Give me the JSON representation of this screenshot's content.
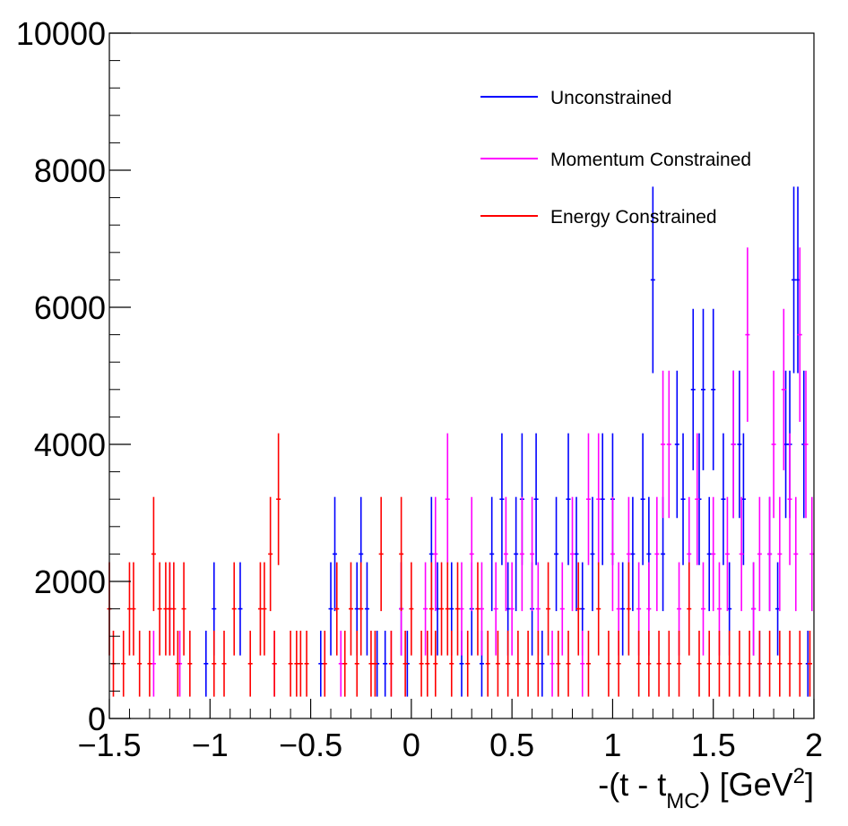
{
  "chart_data": {
    "type": "scatter",
    "title": "",
    "xlabel": "-(t - t_MC) [GeV^2]",
    "xlabel_parts": {
      "pre": "-(t - t",
      "sub": "MC",
      "mid": ") [GeV",
      "sup": "2",
      "post": "]"
    },
    "ylabel": "",
    "xlim": [
      -1.5,
      2
    ],
    "ylim": [
      0,
      10000
    ],
    "x_ticks": [
      -1.5,
      -1,
      -0.5,
      0,
      0.5,
      1,
      1.5,
      2
    ],
    "x_tick_labels": [
      "−1.5",
      "−1",
      "−0.5",
      "0",
      "0.5",
      "1",
      "1.5",
      "2"
    ],
    "y_ticks": [
      0,
      2000,
      4000,
      6000,
      8000,
      10000
    ],
    "y_tick_labels": [
      "0",
      "2000",
      "4000",
      "6000",
      "8000",
      "10000"
    ],
    "grid": false,
    "legend_position": "top-right",
    "error_bars": true,
    "series": [
      {
        "name": "Unconstrained",
        "color": "#0000ff",
        "points": [
          [
            -1.02,
            800
          ],
          [
            -0.98,
            1600
          ],
          [
            -0.85,
            1600
          ],
          [
            -0.45,
            800
          ],
          [
            -0.4,
            1600
          ],
          [
            -0.38,
            2400
          ],
          [
            -0.27,
            1600
          ],
          [
            -0.25,
            2400
          ],
          [
            -0.22,
            1600
          ],
          [
            -0.17,
            800
          ],
          [
            -0.13,
            800
          ],
          [
            -0.05,
            1600
          ],
          [
            -0.02,
            800
          ],
          [
            0.1,
            2400
          ],
          [
            0.13,
            1600
          ],
          [
            0.2,
            1600
          ],
          [
            0.25,
            800
          ],
          [
            0.3,
            1600
          ],
          [
            0.35,
            800
          ],
          [
            0.4,
            2400
          ],
          [
            0.45,
            3200
          ],
          [
            0.48,
            1600
          ],
          [
            0.52,
            2400
          ],
          [
            0.55,
            3200
          ],
          [
            0.6,
            1600
          ],
          [
            0.62,
            3200
          ],
          [
            0.65,
            800
          ],
          [
            0.72,
            2400
          ],
          [
            0.78,
            3200
          ],
          [
            0.82,
            2400
          ],
          [
            0.85,
            1600
          ],
          [
            0.9,
            2400
          ],
          [
            0.95,
            3200
          ],
          [
            1.0,
            3200
          ],
          [
            1.05,
            1600
          ],
          [
            1.1,
            2400
          ],
          [
            1.15,
            3200
          ],
          [
            1.18,
            2400
          ],
          [
            1.2,
            6400
          ],
          [
            1.25,
            2400
          ],
          [
            1.32,
            4000
          ],
          [
            1.35,
            3200
          ],
          [
            1.4,
            4800
          ],
          [
            1.43,
            3200
          ],
          [
            1.45,
            4800
          ],
          [
            1.48,
            2400
          ],
          [
            1.5,
            4800
          ],
          [
            1.55,
            3200
          ],
          [
            1.58,
            1600
          ],
          [
            1.6,
            4000
          ],
          [
            1.63,
            4000
          ],
          [
            1.65,
            3200
          ],
          [
            1.7,
            1600
          ],
          [
            1.73,
            800
          ],
          [
            1.78,
            2400
          ],
          [
            1.82,
            1600
          ],
          [
            1.86,
            4000
          ],
          [
            1.88,
            4000
          ],
          [
            1.9,
            6400
          ],
          [
            1.92,
            6400
          ],
          [
            1.95,
            4000
          ],
          [
            1.97,
            800
          ]
        ]
      },
      {
        "name": "Momentum Constrained",
        "color": "#ff00ff",
        "points": [
          [
            -1.28,
            800
          ],
          [
            -1.2,
            1600
          ],
          [
            -1.15,
            800
          ],
          [
            -0.68,
            800
          ],
          [
            -0.35,
            800
          ],
          [
            -0.1,
            800
          ],
          [
            -0.05,
            1600
          ],
          [
            0.07,
            1600
          ],
          [
            0.12,
            2400
          ],
          [
            0.18,
            3200
          ],
          [
            0.25,
            1600
          ],
          [
            0.3,
            2400
          ],
          [
            0.35,
            1600
          ],
          [
            0.42,
            1600
          ],
          [
            0.47,
            2400
          ],
          [
            0.5,
            1600
          ],
          [
            0.55,
            2400
          ],
          [
            0.6,
            2400
          ],
          [
            0.63,
            1600
          ],
          [
            0.7,
            800
          ],
          [
            0.75,
            1600
          ],
          [
            0.8,
            2400
          ],
          [
            0.85,
            800
          ],
          [
            0.88,
            3200
          ],
          [
            0.93,
            3200
          ],
          [
            1.0,
            2400
          ],
          [
            1.03,
            1600
          ],
          [
            1.08,
            2400
          ],
          [
            1.13,
            1600
          ],
          [
            1.18,
            1600
          ],
          [
            1.22,
            2400
          ],
          [
            1.25,
            4000
          ],
          [
            1.28,
            4000
          ],
          [
            1.33,
            1600
          ],
          [
            1.38,
            2400
          ],
          [
            1.42,
            3200
          ],
          [
            1.45,
            1600
          ],
          [
            1.5,
            2400
          ],
          [
            1.53,
            1600
          ],
          [
            1.57,
            2400
          ],
          [
            1.6,
            4000
          ],
          [
            1.64,
            2400
          ],
          [
            1.67,
            5600
          ],
          [
            1.7,
            1600
          ],
          [
            1.73,
            2400
          ],
          [
            1.78,
            2400
          ],
          [
            1.8,
            4000
          ],
          [
            1.83,
            2400
          ],
          [
            1.85,
            4800
          ],
          [
            1.88,
            3200
          ],
          [
            1.91,
            2400
          ],
          [
            1.93,
            5600
          ],
          [
            1.96,
            4000
          ],
          [
            1.99,
            2400
          ]
        ]
      },
      {
        "name": "Energy Constrained",
        "color": "#ff0000",
        "points": [
          [
            -1.5,
            1600
          ],
          [
            -1.48,
            800
          ],
          [
            -1.43,
            800
          ],
          [
            -1.4,
            1600
          ],
          [
            -1.38,
            1600
          ],
          [
            -1.35,
            800
          ],
          [
            -1.3,
            800
          ],
          [
            -1.28,
            2400
          ],
          [
            -1.25,
            1600
          ],
          [
            -1.22,
            1600
          ],
          [
            -1.2,
            1600
          ],
          [
            -1.18,
            1600
          ],
          [
            -1.16,
            800
          ],
          [
            -1.13,
            1600
          ],
          [
            -1.1,
            800
          ],
          [
            -0.98,
            800
          ],
          [
            -0.93,
            800
          ],
          [
            -0.88,
            1600
          ],
          [
            -0.8,
            800
          ],
          [
            -0.75,
            1600
          ],
          [
            -0.73,
            1600
          ],
          [
            -0.7,
            2400
          ],
          [
            -0.68,
            800
          ],
          [
            -0.66,
            3200
          ],
          [
            -0.6,
            800
          ],
          [
            -0.57,
            800
          ],
          [
            -0.55,
            800
          ],
          [
            -0.52,
            800
          ],
          [
            -0.43,
            800
          ],
          [
            -0.37,
            1600
          ],
          [
            -0.33,
            800
          ],
          [
            -0.3,
            1600
          ],
          [
            -0.27,
            800
          ],
          [
            -0.25,
            1600
          ],
          [
            -0.2,
            800
          ],
          [
            -0.18,
            800
          ],
          [
            -0.15,
            2400
          ],
          [
            -0.1,
            800
          ],
          [
            -0.05,
            2400
          ],
          [
            -0.03,
            800
          ],
          [
            0.0,
            1600
          ],
          [
            0.05,
            800
          ],
          [
            0.08,
            800
          ],
          [
            0.1,
            1600
          ],
          [
            0.12,
            800
          ],
          [
            0.15,
            1600
          ],
          [
            0.18,
            1600
          ],
          [
            0.2,
            800
          ],
          [
            0.23,
            1600
          ],
          [
            0.28,
            800
          ],
          [
            0.33,
            1600
          ],
          [
            0.38,
            800
          ],
          [
            0.43,
            800
          ],
          [
            0.48,
            800
          ],
          [
            0.53,
            800
          ],
          [
            0.58,
            800
          ],
          [
            0.63,
            800
          ],
          [
            0.68,
            1600
          ],
          [
            0.73,
            800
          ],
          [
            0.78,
            800
          ],
          [
            0.83,
            1600
          ],
          [
            0.88,
            800
          ],
          [
            0.93,
            1600
          ],
          [
            0.98,
            800
          ],
          [
            1.03,
            800
          ],
          [
            1.08,
            1600
          ],
          [
            1.13,
            800
          ],
          [
            1.18,
            800
          ],
          [
            1.23,
            800
          ],
          [
            1.28,
            800
          ],
          [
            1.33,
            800
          ],
          [
            1.38,
            1600
          ],
          [
            1.43,
            800
          ],
          [
            1.48,
            800
          ],
          [
            1.53,
            800
          ],
          [
            1.58,
            800
          ],
          [
            1.63,
            800
          ],
          [
            1.68,
            800
          ],
          [
            1.73,
            800
          ],
          [
            1.78,
            800
          ],
          [
            1.83,
            800
          ],
          [
            1.88,
            800
          ],
          [
            1.93,
            800
          ],
          [
            1.98,
            800
          ]
        ]
      }
    ]
  }
}
